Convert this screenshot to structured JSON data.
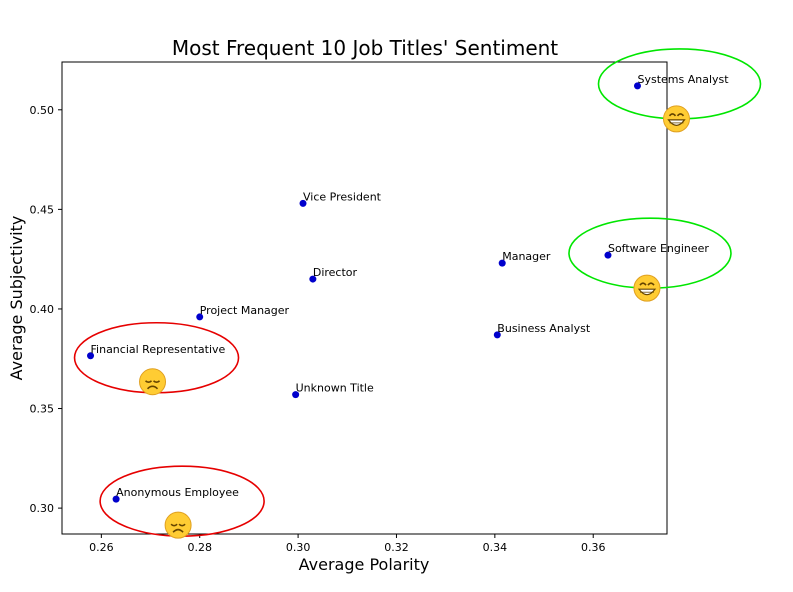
{
  "chart_data": {
    "type": "scatter",
    "title": "Most Frequent 10 Job Titles' Sentiment",
    "xlabel": "Average Polarity",
    "ylabel": "Average Subjectivity",
    "xlim": [
      0.252,
      0.375
    ],
    "ylim": [
      0.287,
      0.524
    ],
    "xticks": [
      "0.26",
      "0.28",
      "0.30",
      "0.32",
      "0.34",
      "0.36"
    ],
    "yticks": [
      "0.30",
      "0.35",
      "0.40",
      "0.45",
      "0.50"
    ],
    "grid": false,
    "marker_color": "#0000cc",
    "points": [
      {
        "label": "Systems Analyst",
        "x": 0.369,
        "y": 0.512
      },
      {
        "label": "Vice President",
        "x": 0.301,
        "y": 0.453
      },
      {
        "label": "Software Engineer",
        "x": 0.363,
        "y": 0.427
      },
      {
        "label": "Manager",
        "x": 0.3415,
        "y": 0.423
      },
      {
        "label": "Director",
        "x": 0.303,
        "y": 0.415
      },
      {
        "label": "Project Manager",
        "x": 0.28,
        "y": 0.396
      },
      {
        "label": "Business Analyst",
        "x": 0.3405,
        "y": 0.387
      },
      {
        "label": "Financial Representative",
        "x": 0.2578,
        "y": 0.3765
      },
      {
        "label": "Unknown Title",
        "x": 0.2995,
        "y": 0.357
      },
      {
        "label": "Anonymous Employee",
        "x": 0.263,
        "y": 0.3045
      }
    ],
    "annotations": [
      {
        "kind": "positive",
        "emoji": "😁",
        "target": "Systems Analyst",
        "color": "#00e600"
      },
      {
        "kind": "positive",
        "emoji": "😁",
        "target": "Software Engineer",
        "color": "#00e600"
      },
      {
        "kind": "negative",
        "emoji": "😞",
        "target": "Financial Representative",
        "color": "#e60000"
      },
      {
        "kind": "negative",
        "emoji": "😞",
        "target": "Anonymous Employee",
        "color": "#e60000"
      }
    ]
  }
}
